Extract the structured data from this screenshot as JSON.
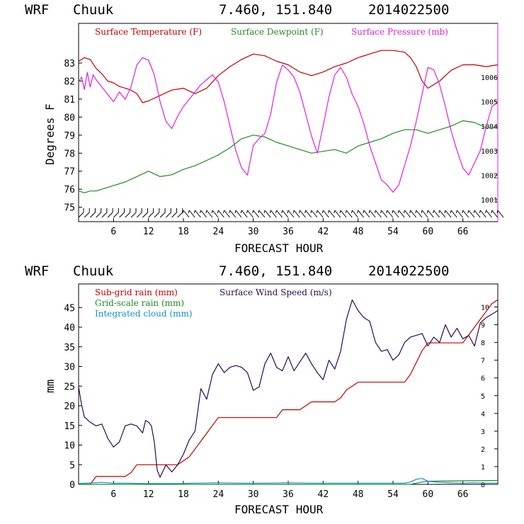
{
  "header": {
    "model": "WRF",
    "station": "Chuuk",
    "coords": "7.460, 151.840",
    "init_time": "2014022500"
  },
  "colors": {
    "temperature": "#c00000",
    "dewpoint": "#1e8c1e",
    "pressure": "#e020e0",
    "subgrid_rain": "#c00000",
    "gridscale_rain": "#1e8c1e",
    "integrated_cloud": "#1090d0",
    "wind_speed": "#2a0850",
    "wind_barbs": "#000000"
  },
  "chart_data": [
    {
      "type": "line",
      "header": "WRF   Chuuk           7.460, 151.840  2014022500",
      "xlabel": "FORECAST HOUR",
      "ylabel": "Degrees F",
      "xlim": [
        0,
        72
      ],
      "ylim": [
        74.2,
        85.2
      ],
      "y2lim": [
        1000.1,
        1008.2
      ],
      "x_ticks": [
        6,
        12,
        18,
        24,
        30,
        36,
        42,
        48,
        54,
        60,
        66
      ],
      "y_ticks": [
        75,
        76,
        77,
        78,
        79,
        80,
        81,
        82,
        83
      ],
      "y2_ticks": [
        1001,
        1002,
        1003,
        1004,
        1005,
        1006
      ],
      "series": [
        {
          "name": "Surface Temperature (F)",
          "axis": "left",
          "x": [
            0,
            1,
            2,
            3,
            4,
            5,
            6,
            7,
            8,
            9,
            10,
            11,
            12,
            14,
            16,
            18,
            20,
            22,
            24,
            26,
            28,
            30,
            32,
            34,
            36,
            38,
            40,
            42,
            44,
            46,
            48,
            50,
            52,
            54,
            56,
            57,
            58,
            59,
            60,
            62,
            64,
            66,
            68,
            70,
            72
          ],
          "y": [
            83.1,
            83.3,
            83.2,
            82.7,
            82.4,
            82.0,
            81.9,
            81.7,
            81.6,
            81.5,
            81.3,
            80.8,
            80.9,
            81.2,
            81.5,
            81.6,
            81.3,
            81.6,
            82.3,
            82.8,
            83.2,
            83.5,
            83.4,
            83.1,
            82.9,
            82.5,
            82.3,
            82.5,
            82.8,
            83.0,
            83.3,
            83.5,
            83.7,
            83.7,
            83.6,
            83.3,
            82.8,
            82.0,
            81.6,
            82.0,
            82.6,
            82.9,
            82.9,
            82.8,
            82.9
          ]
        },
        {
          "name": "Surface Dewpoint (F)",
          "axis": "left",
          "x": [
            0,
            1,
            2,
            3,
            4,
            6,
            8,
            10,
            12,
            14,
            16,
            18,
            20,
            22,
            24,
            26,
            28,
            30,
            32,
            34,
            36,
            38,
            40,
            42,
            44,
            46,
            48,
            50,
            52,
            54,
            56,
            58,
            60,
            62,
            64,
            66,
            68,
            70,
            72
          ],
          "y": [
            75.9,
            75.8,
            75.9,
            75.9,
            76.0,
            76.2,
            76.4,
            76.7,
            77.0,
            76.7,
            76.8,
            77.1,
            77.3,
            77.6,
            77.9,
            78.3,
            78.8,
            79.0,
            78.9,
            78.6,
            78.4,
            78.2,
            78.0,
            78.1,
            78.2,
            78.0,
            78.4,
            78.6,
            78.8,
            79.1,
            79.3,
            79.3,
            79.1,
            79.3,
            79.5,
            79.8,
            79.7,
            79.4,
            79.4
          ]
        },
        {
          "name": "Surface Pressure (mb)",
          "axis": "right",
          "x": [
            0,
            0.5,
            1,
            1.5,
            2,
            2.5,
            3,
            4,
            5,
            6,
            7,
            8,
            9,
            10,
            11,
            12,
            13,
            14,
            15,
            16,
            17,
            18,
            19,
            20,
            21,
            22,
            23,
            24,
            25,
            26,
            27,
            28,
            29,
            30,
            31,
            32,
            33,
            34,
            35,
            36,
            37,
            38,
            39,
            40,
            41,
            42,
            43,
            44,
            45,
            46,
            47,
            48,
            49,
            50,
            51,
            52,
            53,
            54,
            55,
            56,
            57,
            58,
            59,
            60,
            61,
            62,
            63,
            64,
            65,
            66,
            67,
            68,
            69,
            70,
            71,
            72
          ],
          "y": [
            1005.8,
            1006.0,
            1005.5,
            1006.2,
            1005.6,
            1006.1,
            1005.9,
            1005.6,
            1005.3,
            1005.0,
            1005.4,
            1005.1,
            1005.6,
            1006.5,
            1006.8,
            1006.7,
            1006.1,
            1005.0,
            1004.2,
            1003.9,
            1004.4,
            1004.8,
            1005.1,
            1005.4,
            1005.7,
            1005.9,
            1006.1,
            1005.8,
            1005.0,
            1004.0,
            1003.0,
            1002.3,
            1002.0,
            1003.2,
            1003.5,
            1003.7,
            1004.5,
            1005.8,
            1006.5,
            1006.3,
            1006.0,
            1005.4,
            1004.5,
            1003.6,
            1002.9,
            1004.0,
            1005.2,
            1006.1,
            1006.4,
            1006.0,
            1005.3,
            1004.8,
            1004.1,
            1003.2,
            1002.5,
            1001.8,
            1001.6,
            1001.3,
            1001.6,
            1002.4,
            1003.2,
            1004.2,
            1005.3,
            1006.4,
            1006.3,
            1005.7,
            1004.8,
            1003.8,
            1003.0,
            1002.3,
            1002.0,
            1002.5,
            1003.0,
            1004.0,
            1004.8,
            1005.0
          ]
        }
      ],
      "wind_barbs": {
        "x": [
          0,
          1,
          2,
          3,
          4,
          5,
          6,
          7,
          8,
          9,
          10,
          11,
          12,
          13,
          14,
          15,
          16,
          17,
          18,
          19,
          20,
          21,
          22,
          23,
          24,
          25,
          26,
          27,
          28,
          29,
          30,
          31,
          32,
          33,
          34,
          35,
          36,
          37,
          38,
          39,
          40,
          41,
          42,
          43,
          44,
          45,
          46,
          47,
          48,
          49,
          50,
          51,
          52,
          53,
          54,
          55,
          56,
          57,
          58,
          59,
          60,
          61,
          62,
          63,
          64,
          65,
          66,
          67,
          68,
          69,
          70,
          71,
          72
        ]
      }
    },
    {
      "type": "line",
      "header": "WRF   Chuuk           7.460, 151.840  2014022500",
      "xlabel": "FORECAST HOUR",
      "ylabel": "mm",
      "xlim": [
        0,
        72
      ],
      "ylim": [
        0,
        51
      ],
      "y2lim": [
        0,
        11.3
      ],
      "x_ticks": [
        6,
        12,
        18,
        24,
        30,
        36,
        42,
        48,
        54,
        60,
        66
      ],
      "y_ticks": [
        0,
        5,
        10,
        15,
        20,
        25,
        30,
        35,
        40,
        45
      ],
      "y2_ticks": [
        0,
        1,
        2,
        3,
        4,
        5,
        6,
        7,
        8,
        9,
        10
      ],
      "series": [
        {
          "name": "Sub-grid rain (mm)",
          "axis": "left",
          "x": [
            0,
            2,
            3,
            6,
            8,
            9,
            10,
            12,
            14,
            16,
            17,
            18,
            19,
            20,
            21,
            22,
            24,
            26,
            28,
            30,
            32,
            34,
            35,
            36,
            38,
            39,
            40,
            42,
            43,
            44,
            45,
            46,
            48,
            50,
            52,
            54,
            56,
            57,
            58,
            59,
            60,
            61,
            62,
            64,
            66,
            67,
            68,
            69,
            70,
            71,
            72
          ],
          "y": [
            0,
            0,
            2,
            2,
            2,
            3,
            5,
            5,
            5,
            5,
            5,
            6,
            7,
            9,
            11,
            13,
            17,
            17,
            17,
            17,
            17,
            17,
            19,
            19,
            19,
            20,
            21,
            21,
            21,
            21,
            22,
            24,
            26,
            26,
            26,
            26,
            26,
            28,
            31,
            34,
            36,
            36,
            36,
            36,
            36,
            38,
            40,
            42,
            44,
            46,
            47
          ]
        },
        {
          "name": "Grid-scale rain (mm)",
          "axis": "left",
          "x": [
            0,
            57,
            58,
            59,
            60,
            66,
            72
          ],
          "y": [
            0,
            0,
            0.3,
            0.6,
            0.8,
            0.9,
            1.0
          ]
        },
        {
          "name": "Integrated cloud (mm)",
          "axis": "left",
          "x": [
            0,
            4,
            6,
            8,
            12,
            16,
            20,
            24,
            28,
            32,
            36,
            40,
            44,
            48,
            52,
            56,
            57,
            58,
            59,
            60,
            62,
            64,
            66,
            68,
            70,
            72
          ],
          "y": [
            0.2,
            0.5,
            0.3,
            0.3,
            0.2,
            0.2,
            0.3,
            0.4,
            0.3,
            0.3,
            0.4,
            0.3,
            0.3,
            0.3,
            0.3,
            0.3,
            0.6,
            1.3,
            1.5,
            0.8,
            0.5,
            0.4,
            0.3,
            0.4,
            0.3,
            0.3
          ]
        },
        {
          "name": "Surface Wind Speed (m/s)",
          "axis": "right",
          "x": [
            0,
            0.5,
            1,
            2,
            3,
            4,
            5,
            6,
            7,
            8,
            9,
            10,
            11,
            11.5,
            12,
            12.5,
            13,
            13.5,
            14,
            15,
            16,
            17,
            18,
            19,
            20,
            21,
            22,
            23,
            24,
            25,
            26,
            27,
            28,
            29,
            30,
            31,
            32,
            33,
            34,
            35,
            36,
            37,
            38,
            39,
            40,
            41,
            42,
            43,
            44,
            45,
            46,
            47,
            48,
            49,
            50,
            51,
            52,
            53,
            54,
            55,
            56,
            57,
            58,
            59,
            60,
            61,
            62,
            63,
            64,
            65,
            66,
            67,
            68,
            69,
            70,
            71,
            72
          ],
          "y": [
            5.5,
            4.5,
            3.8,
            3.5,
            3.3,
            3.4,
            2.6,
            2.1,
            2.4,
            3.3,
            3.4,
            3.3,
            2.9,
            3.6,
            3.5,
            3.3,
            2.4,
            0.8,
            0.4,
            1.1,
            0.7,
            1.1,
            1.7,
            2.5,
            3.0,
            5.4,
            4.8,
            6.2,
            6.8,
            6.3,
            6.6,
            6.7,
            6.6,
            6.3,
            5.3,
            5.5,
            6.8,
            7.4,
            6.6,
            6.4,
            7.2,
            6.4,
            6.9,
            7.4,
            6.8,
            6.3,
            5.9,
            7.0,
            6.5,
            7.5,
            9.3,
            10.4,
            9.8,
            9.4,
            9.2,
            8.0,
            7.5,
            7.6,
            7.0,
            7.3,
            8.0,
            8.3,
            8.4,
            8.5,
            7.8,
            8.3,
            8.0,
            9.0,
            8.3,
            8.8,
            8.2,
            8.4,
            7.8,
            9.1,
            9.4,
            9.6,
            9.8
          ]
        }
      ]
    }
  ]
}
